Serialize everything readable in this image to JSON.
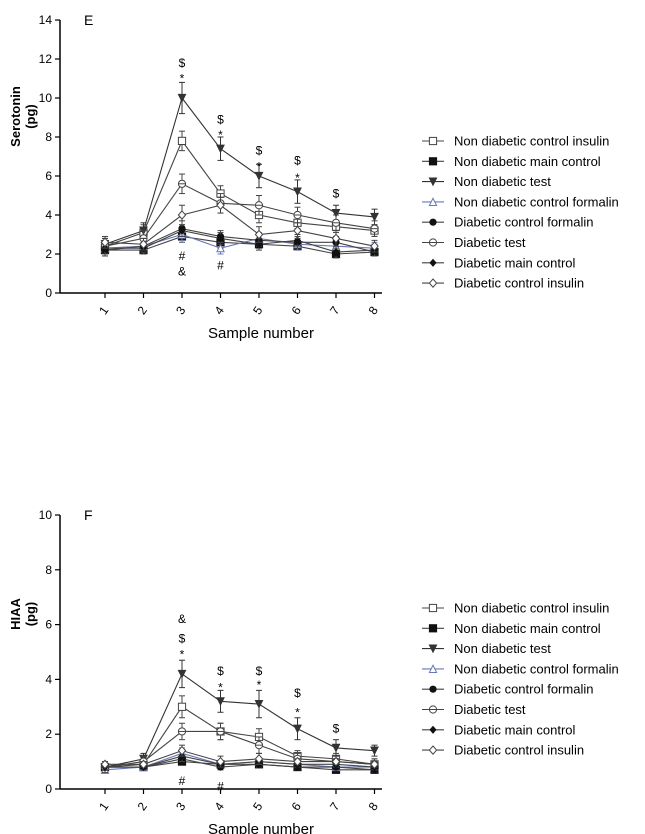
{
  "legend_entries": [
    {
      "name": "Non diabetic control insulin",
      "marker": "square-open"
    },
    {
      "name": "Non diabetic main control",
      "marker": "square-filled"
    },
    {
      "name": "Non diabetic test",
      "marker": "tri-down-filled"
    },
    {
      "name": "Non diabetic control formalin",
      "marker": "tri-up-open"
    },
    {
      "name": "Diabetic control formalin",
      "marker": "circle-filled"
    },
    {
      "name": "Diabetic test",
      "marker": "circle-half"
    },
    {
      "name": "Diabetic main control",
      "marker": "diamond-filled"
    },
    {
      "name": "Diabetic control insulin",
      "marker": "diamond-open"
    }
  ],
  "chart_data": [
    {
      "type": "line",
      "panel_label": "E",
      "ylabel": "Serotonin (pg)",
      "ylabel_lines": [
        "Serotonin",
        "(pg)"
      ],
      "xlabel": "Sample number",
      "x": [
        1,
        2,
        3,
        4,
        5,
        6,
        7,
        8
      ],
      "ylim": [
        0,
        14
      ],
      "yticks": [
        0,
        2,
        4,
        6,
        8,
        10,
        12,
        14
      ],
      "series": [
        {
          "name": "Non diabetic control insulin",
          "values": [
            2.4,
            3.1,
            7.8,
            5.1,
            4.0,
            3.6,
            3.4,
            3.2
          ],
          "err": [
            0.3,
            0.4,
            0.5,
            0.4,
            0.4,
            0.3,
            0.3,
            0.3
          ]
        },
        {
          "name": "Non diabetic main control",
          "values": [
            2.2,
            2.2,
            2.9,
            2.6,
            2.5,
            2.4,
            2.0,
            2.1
          ],
          "err": [
            0.3,
            0.2,
            0.3,
            0.3,
            0.2,
            0.2,
            0.2,
            0.2
          ]
        },
        {
          "name": "Non diabetic test",
          "values": [
            2.5,
            3.2,
            10.0,
            7.4,
            6.0,
            5.2,
            4.1,
            3.9
          ],
          "err": [
            0.3,
            0.4,
            0.8,
            0.6,
            0.6,
            0.6,
            0.4,
            0.4
          ]
        },
        {
          "name": "Non diabetic control formalin",
          "values": [
            2.3,
            2.4,
            3.0,
            2.3,
            2.8,
            2.5,
            2.4,
            2.3
          ],
          "err": [
            0.3,
            0.3,
            0.4,
            0.3,
            0.3,
            0.3,
            0.3,
            0.3
          ]
        },
        {
          "name": "Diabetic control formalin",
          "values": [
            2.2,
            2.4,
            3.3,
            2.9,
            2.7,
            2.6,
            2.6,
            2.1
          ],
          "err": [
            0.3,
            0.3,
            0.4,
            0.3,
            0.3,
            0.3,
            0.3,
            0.2
          ]
        },
        {
          "name": "Diabetic test",
          "values": [
            2.4,
            2.8,
            5.6,
            4.6,
            4.5,
            4.0,
            3.6,
            3.3
          ],
          "err": [
            0.4,
            0.4,
            0.5,
            0.5,
            0.5,
            0.4,
            0.4,
            0.4
          ]
        },
        {
          "name": "Diabetic main control",
          "values": [
            2.3,
            2.3,
            3.2,
            2.8,
            2.5,
            2.7,
            2.1,
            2.2
          ],
          "err": [
            0.3,
            0.3,
            0.3,
            0.3,
            0.3,
            0.3,
            0.3,
            0.3
          ]
        },
        {
          "name": "Diabetic control insulin",
          "values": [
            2.6,
            2.5,
            4.0,
            4.5,
            3.0,
            3.2,
            2.8,
            2.4
          ],
          "err": [
            0.3,
            0.3,
            0.5,
            0.4,
            0.4,
            0.4,
            0.4,
            0.3
          ]
        }
      ],
      "annotations": [
        {
          "x": 3,
          "y": 11.8,
          "text": "$"
        },
        {
          "x": 3,
          "y": 11.0,
          "text": "*"
        },
        {
          "x": 4,
          "y": 8.9,
          "text": "$"
        },
        {
          "x": 4,
          "y": 8.1,
          "text": "*"
        },
        {
          "x": 5,
          "y": 7.3,
          "text": "$"
        },
        {
          "x": 5,
          "y": 6.5,
          "text": "*"
        },
        {
          "x": 6,
          "y": 6.8,
          "text": "$"
        },
        {
          "x": 6,
          "y": 5.9,
          "text": "*"
        },
        {
          "x": 7,
          "y": 5.1,
          "text": "$"
        },
        {
          "x": 3,
          "y": 1.9,
          "text": "#"
        },
        {
          "x": 3,
          "y": 1.1,
          "text": "&"
        },
        {
          "x": 4,
          "y": 1.4,
          "text": "#"
        }
      ]
    },
    {
      "type": "line",
      "panel_label": "F",
      "ylabel": "HIAA (pg)",
      "ylabel_lines": [
        "HIAA",
        "(pg)"
      ],
      "xlabel": "Sample number",
      "x": [
        1,
        2,
        3,
        4,
        5,
        6,
        7,
        8
      ],
      "ylim": [
        0,
        10
      ],
      "yticks": [
        0,
        2,
        4,
        6,
        8,
        10
      ],
      "series": [
        {
          "name": "Non diabetic control insulin",
          "values": [
            0.8,
            0.9,
            3.0,
            2.1,
            1.9,
            1.2,
            1.1,
            0.9
          ],
          "err": [
            0.2,
            0.2,
            0.4,
            0.3,
            0.3,
            0.2,
            0.2,
            0.2
          ]
        },
        {
          "name": "Non diabetic main control",
          "values": [
            0.8,
            0.8,
            1.0,
            0.9,
            0.9,
            0.8,
            0.7,
            0.7
          ],
          "err": [
            0.1,
            0.1,
            0.1,
            0.1,
            0.1,
            0.1,
            0.1,
            0.1
          ]
        },
        {
          "name": "Non diabetic test",
          "values": [
            0.8,
            1.1,
            4.2,
            3.2,
            3.1,
            2.2,
            1.5,
            1.4
          ],
          "err": [
            0.2,
            0.2,
            0.5,
            0.4,
            0.5,
            0.4,
            0.3,
            0.2
          ]
        },
        {
          "name": "Non diabetic control formalin",
          "values": [
            0.7,
            0.8,
            1.3,
            0.9,
            1.0,
            0.9,
            0.8,
            0.8
          ],
          "err": [
            0.1,
            0.1,
            0.2,
            0.1,
            0.1,
            0.1,
            0.1,
            0.1
          ]
        },
        {
          "name": "Diabetic control formalin",
          "values": [
            0.8,
            0.8,
            1.1,
            0.8,
            0.9,
            0.8,
            0.8,
            0.7
          ],
          "err": [
            0.1,
            0.1,
            0.1,
            0.1,
            0.1,
            0.1,
            0.1,
            0.1
          ]
        },
        {
          "name": "Diabetic test",
          "values": [
            0.8,
            1.0,
            2.1,
            2.1,
            1.6,
            1.1,
            1.0,
            0.9
          ],
          "err": [
            0.2,
            0.2,
            0.3,
            0.3,
            0.3,
            0.2,
            0.2,
            0.2
          ]
        },
        {
          "name": "Diabetic main control",
          "values": [
            0.8,
            0.8,
            1.2,
            0.9,
            1.0,
            0.9,
            0.9,
            0.8
          ],
          "err": [
            0.1,
            0.1,
            0.2,
            0.1,
            0.1,
            0.1,
            0.1,
            0.1
          ]
        },
        {
          "name": "Diabetic control insulin",
          "values": [
            0.9,
            0.9,
            1.4,
            1.0,
            1.1,
            1.0,
            1.0,
            0.9
          ],
          "err": [
            0.1,
            0.1,
            0.2,
            0.2,
            0.2,
            0.1,
            0.1,
            0.1
          ]
        }
      ],
      "annotations": [
        {
          "x": 3,
          "y": 6.2,
          "text": "&"
        },
        {
          "x": 3,
          "y": 5.5,
          "text": "$"
        },
        {
          "x": 3,
          "y": 4.9,
          "text": "*"
        },
        {
          "x": 4,
          "y": 4.3,
          "text": "$"
        },
        {
          "x": 4,
          "y": 3.7,
          "text": "*"
        },
        {
          "x": 5,
          "y": 4.3,
          "text": "$"
        },
        {
          "x": 5,
          "y": 3.8,
          "text": "*"
        },
        {
          "x": 6,
          "y": 3.5,
          "text": "$"
        },
        {
          "x": 6,
          "y": 2.8,
          "text": "*"
        },
        {
          "x": 7,
          "y": 2.2,
          "text": "$"
        },
        {
          "x": 3,
          "y": 0.3,
          "text": "#"
        },
        {
          "x": 4,
          "y": 0.1,
          "text": "#"
        }
      ]
    }
  ]
}
